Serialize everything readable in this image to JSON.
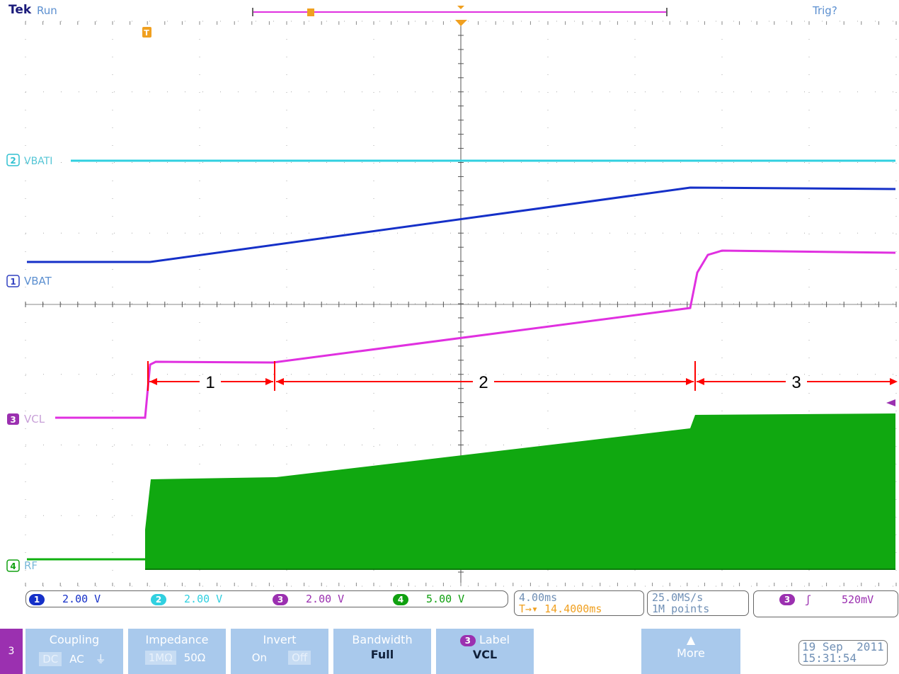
{
  "header": {
    "brand": "Tek",
    "status": "Run",
    "trigger_state": "Trig?"
  },
  "colors": {
    "ch1": "#1530c8",
    "ch2": "#30d0e0",
    "ch3": "#e030e0",
    "ch4": "#10b010",
    "annotation": "#ff0000",
    "grid": "#999999",
    "accent": "#f0a020"
  },
  "channels": {
    "ch1": {
      "number": "1",
      "label": "VBAT",
      "scale": "2.00 V"
    },
    "ch2": {
      "number": "2",
      "label": "VBATI",
      "scale": "2.00 V"
    },
    "ch3": {
      "number": "3",
      "label": "VCL",
      "scale": "2.00 V"
    },
    "ch4": {
      "number": "4",
      "label": "RF",
      "scale": "5.00 V"
    }
  },
  "regions": [
    "1",
    "2",
    "3"
  ],
  "timebase": {
    "scale": "4.00ms",
    "position": "14.4000ms"
  },
  "acquisition": {
    "rate": "25.0MS/s",
    "length": "1M points"
  },
  "trigger": {
    "channel": "3",
    "slope_icon": "rising-edge-icon",
    "level": "520mV"
  },
  "menu": {
    "active_channel": "3",
    "coupling": {
      "label": "Coupling",
      "options": [
        "DC",
        "AC",
        "⏚"
      ],
      "selected": "DC"
    },
    "impedance": {
      "label": "Impedance",
      "options": [
        "1MΩ",
        "50Ω"
      ],
      "selected": "1MΩ"
    },
    "invert": {
      "label": "Invert",
      "options": [
        "On",
        "Off"
      ],
      "selected": "Off"
    },
    "bandwidth": {
      "label": "Bandwidth",
      "value": "Full"
    },
    "label_btn": {
      "channel": "3",
      "label": "Label",
      "value": "VCL"
    },
    "more": {
      "label": "More"
    }
  },
  "datetime": {
    "date": "19 Sep  2011",
    "time": "15:31:54"
  }
}
